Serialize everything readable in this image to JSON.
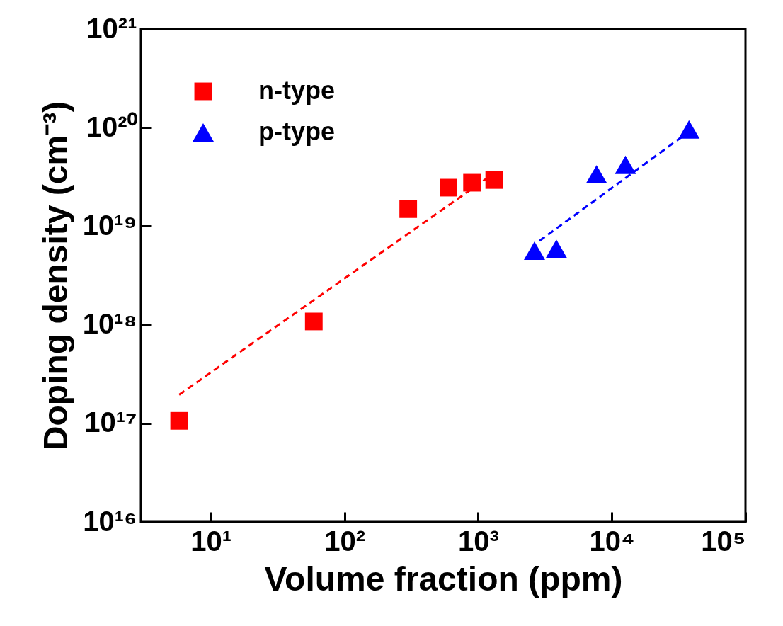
{
  "chart_data": {
    "type": "scatter",
    "xlabel": "Volume fraction (ppm)",
    "ylabel": "Doping density (cm⁻³)",
    "log": "xy",
    "grid": false,
    "legend": "top left",
    "xlim": [
      3,
      100000
    ],
    "ylim": [
      1e+16,
      1e+21
    ],
    "xticks": [
      {
        "value": 10,
        "label": "10¹"
      },
      {
        "value": 100,
        "label": "10²"
      },
      {
        "value": 1000,
        "label": "10³"
      },
      {
        "value": 10000,
        "label": "10⁴"
      },
      {
        "value": 100000,
        "label": "10⁵"
      }
    ],
    "yticks": [
      {
        "value": 1e+16,
        "label": "10¹⁶"
      },
      {
        "value": 1e+17,
        "label": "10¹⁷"
      },
      {
        "value": 1e+18,
        "label": "10¹⁸"
      },
      {
        "value": 1e+19,
        "label": "10¹⁹"
      },
      {
        "value": 1e+20,
        "label": "10²⁰"
      },
      {
        "value": 1e+21,
        "label": "10²¹"
      }
    ],
    "series": [
      {
        "name": "n-type",
        "marker": "square",
        "color": "#ff0000",
        "x": [
          5.8,
          59,
          300,
          600,
          900,
          1320
        ],
        "values": [
          1.06e+17,
          1.08e+18,
          1.49e+19,
          2.46e+19,
          2.76e+19,
          2.94e+19
        ]
      },
      {
        "name": "p-type",
        "marker": "triangle",
        "color": "#0000ff",
        "x": [
          2640,
          3850,
          7690,
          12650,
          37800
        ],
        "values": [
          5.65e+18,
          5.9e+18,
          3.36e+19,
          4.2e+19,
          9.6e+19
        ]
      },
      {
        "type": "line",
        "line_style": "dashed",
        "color": "#ff0000",
        "x": [
          5.8,
          1300
        ],
        "values": [
          1.95e+17,
          3.4e+19
        ]
      },
      {
        "type": "line",
        "line_style": "dashed",
        "color": "#0000ff",
        "x": [
          2880,
          33600
        ],
        "values": [
          7.1e+18,
          8.1e+19
        ]
      }
    ]
  }
}
